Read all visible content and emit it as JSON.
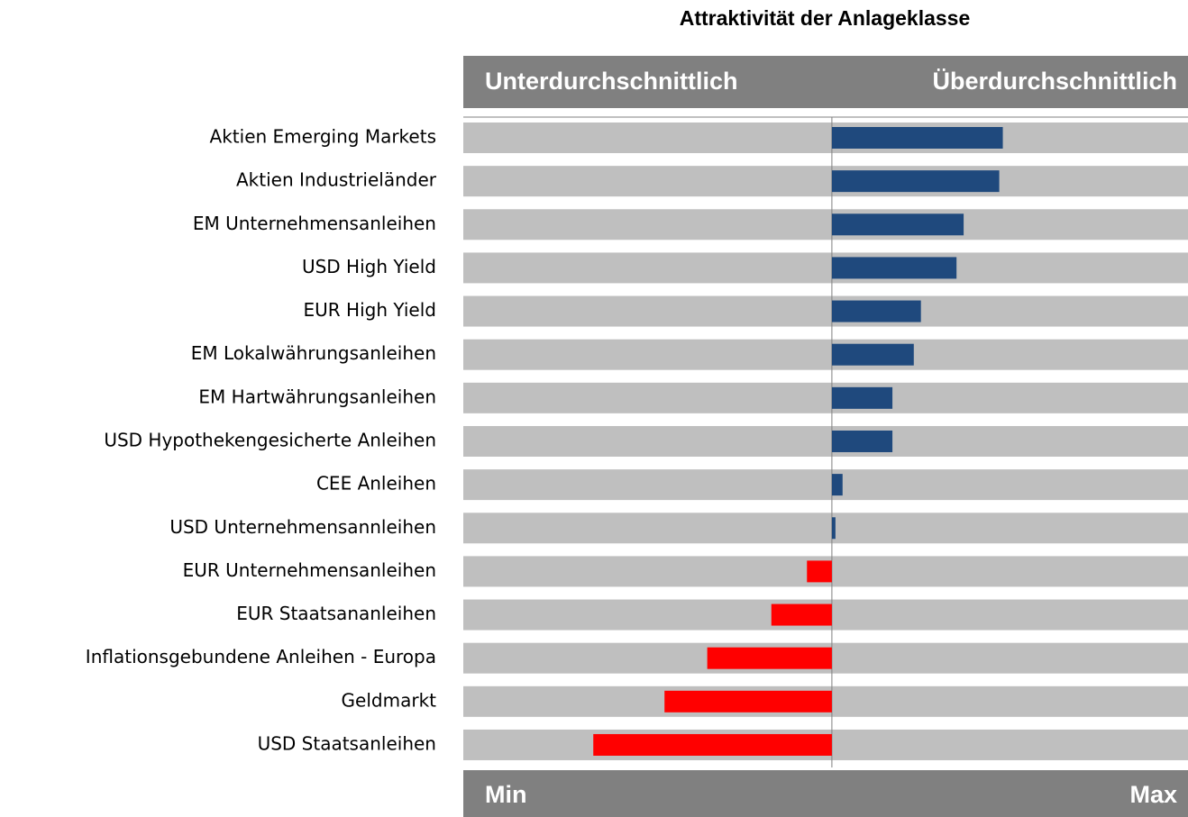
{
  "chart_data": {
    "type": "diverging_bar",
    "title": "Attraktivität der Anlageklasse",
    "header_left": "Unterdurchschnittlich",
    "header_right": "Überdurchschnittlich",
    "footer_left": "Min",
    "footer_right": "Max",
    "categories": [
      "Aktien Emerging Markets",
      "Aktien Industrieländer",
      "EM Unternehmensanleihen",
      "USD High Yield",
      "EUR High Yield",
      "EM Lokalwährungsanleihen",
      "EM Hartwährungsanleihen",
      "USD Hypothekengesicherte Anleihen",
      "CEE Anleihen",
      "USD Unternehmensannleihen",
      "EUR Unternehmensanleihen",
      "EUR Staatsananleihen",
      "Inflationsgebundene Anleihen - Europa",
      "Geldmarkt",
      "USD Staatsanleihen"
    ],
    "values": [
      48,
      47,
      37,
      35,
      25,
      23,
      17,
      17,
      3,
      1,
      -7,
      -17,
      -35,
      -47,
      -67
    ],
    "xlim": [
      -103.5,
      100
    ],
    "xticks": [
      0
    ],
    "positive_color": "#1f497d",
    "negative_color": "#ff0000",
    "track_color": "#bfbfbf",
    "band_color": "#808080"
  }
}
